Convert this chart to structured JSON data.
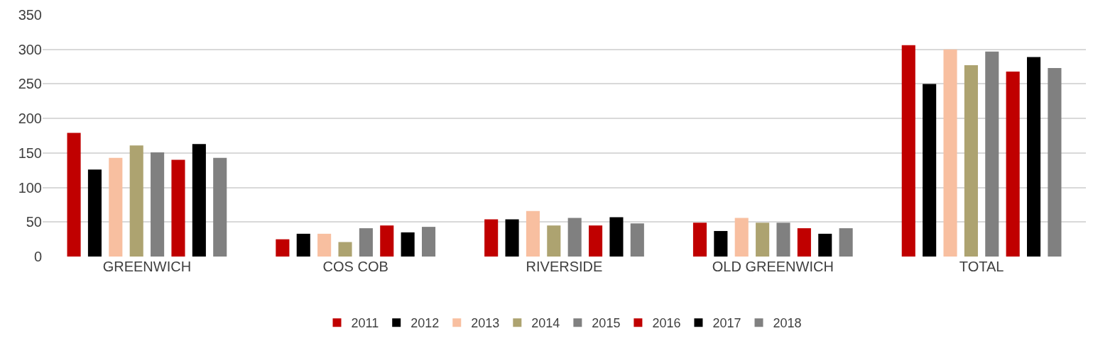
{
  "chart_data": {
    "type": "bar",
    "categories": [
      "GREENWICH",
      "COS COB",
      "RIVERSIDE",
      "OLD GREENWICH",
      "TOTAL"
    ],
    "series": [
      {
        "name": "2011",
        "color": "#c00000",
        "values": [
          179,
          25,
          54,
          49,
          306
        ]
      },
      {
        "name": "2012",
        "color": "#000000",
        "values": [
          126,
          33,
          54,
          37,
          250
        ]
      },
      {
        "name": "2013",
        "color": "#f8bfa0",
        "values": [
          143,
          33,
          66,
          56,
          300
        ]
      },
      {
        "name": "2014",
        "color": "#ada370",
        "values": [
          161,
          21,
          45,
          49,
          277
        ]
      },
      {
        "name": "2015",
        "color": "#808080",
        "values": [
          151,
          41,
          56,
          49,
          297
        ]
      },
      {
        "name": "2016",
        "color": "#c00000",
        "values": [
          140,
          45,
          45,
          41,
          268
        ]
      },
      {
        "name": "2017",
        "color": "#000000",
        "values": [
          163,
          35,
          57,
          33,
          289
        ]
      },
      {
        "name": "2018",
        "color": "#808080",
        "values": [
          143,
          43,
          48,
          41,
          273
        ]
      }
    ],
    "ylim": [
      0,
      350
    ],
    "yticks": [
      0,
      50,
      100,
      150,
      200,
      250,
      300,
      350
    ],
    "grid": "y",
    "legend": "bottom"
  }
}
